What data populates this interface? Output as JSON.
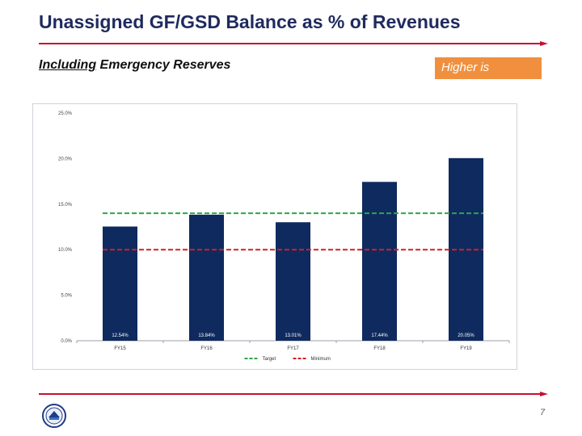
{
  "slide": {
    "title": "Unassigned GF/GSD Balance as % of Revenues",
    "subtitle_underlined": "Including",
    "subtitle_rest": " Emergency Reserves",
    "callout": "Higher is",
    "page_number": "7"
  },
  "colors": {
    "bar": "#0f2a5f",
    "target": "#2aa84a",
    "minimum": "#d0202a",
    "rule": "#c8102e",
    "callout_bg": "#f0903f"
  },
  "chart_data": {
    "type": "bar",
    "title": "",
    "categories": [
      "FY15",
      "FY16",
      "FY17",
      "FY18",
      "FY19"
    ],
    "values": [
      12.54,
      13.84,
      13.01,
      17.44,
      20.05
    ],
    "value_labels": [
      "12.54%",
      "13.84%",
      "13.01%",
      "17.44%",
      "20.05%"
    ],
    "ylim": [
      0,
      25
    ],
    "yticks": [
      0,
      5,
      10,
      15,
      20,
      25
    ],
    "ytick_labels": [
      "0.0%",
      "5.0%",
      "10.0%",
      "15.0%",
      "20.0%",
      "25.0%"
    ],
    "reference_lines": [
      {
        "name": "Target",
        "value": 14,
        "color": "#2aa84a",
        "style": "dashed"
      },
      {
        "name": "Minimum",
        "value": 10,
        "color": "#d0202a",
        "style": "dashed"
      }
    ],
    "legend": [
      "Target",
      "Minimum"
    ],
    "legend_position": "bottom",
    "xlabel": "",
    "ylabel": ""
  }
}
